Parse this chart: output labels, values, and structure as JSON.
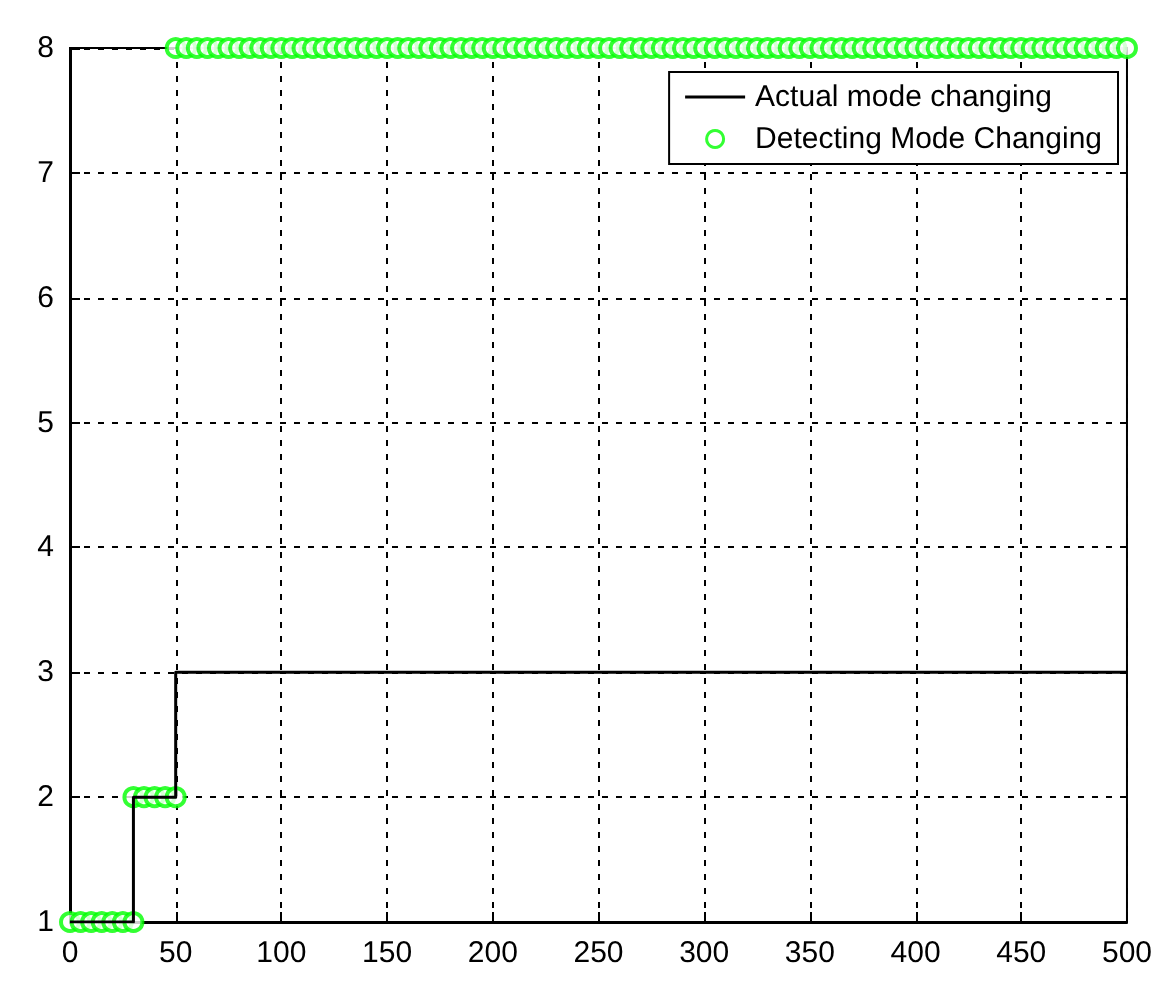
{
  "chart_data": {
    "type": "line",
    "xlim": [
      0,
      500
    ],
    "ylim": [
      1,
      8
    ],
    "xticks": [
      0,
      50,
      100,
      150,
      200,
      250,
      300,
      350,
      400,
      450,
      500
    ],
    "yticks": [
      1,
      2,
      3,
      4,
      5,
      6,
      7,
      8
    ],
    "grid": true,
    "legend": "top right",
    "series": [
      {
        "name": "Actual mode changing",
        "color": "#000000",
        "marker": "none",
        "line_style": "solid",
        "x": [
          0,
          30,
          30,
          50,
          50,
          500
        ],
        "values": [
          1,
          1,
          2,
          2,
          3,
          3
        ]
      },
      {
        "name": "Detecting Mode Changing",
        "type": "scatter",
        "color": "#00ff00",
        "marker": "circle",
        "x": [
          0,
          5,
          10,
          15,
          20,
          25,
          30,
          30,
          35,
          40,
          45,
          50,
          50,
          55,
          60,
          65,
          70,
          75,
          80,
          85,
          90,
          95,
          100,
          105,
          110,
          115,
          120,
          125,
          130,
          135,
          140,
          145,
          150,
          155,
          160,
          165,
          170,
          175,
          180,
          185,
          190,
          195,
          200,
          205,
          210,
          215,
          220,
          225,
          230,
          235,
          240,
          245,
          250,
          255,
          260,
          265,
          270,
          275,
          280,
          285,
          290,
          295,
          300,
          305,
          310,
          315,
          320,
          325,
          330,
          335,
          340,
          345,
          350,
          355,
          360,
          365,
          370,
          375,
          380,
          385,
          390,
          395,
          400,
          405,
          410,
          415,
          420,
          425,
          430,
          435,
          440,
          445,
          450,
          455,
          460,
          465,
          470,
          475,
          480,
          485,
          490,
          495,
          500
        ],
        "values": [
          1,
          1,
          1,
          1,
          1,
          1,
          1,
          2,
          2,
          2,
          2,
          2,
          8,
          8,
          8,
          8,
          8,
          8,
          8,
          8,
          8,
          8,
          8,
          8,
          8,
          8,
          8,
          8,
          8,
          8,
          8,
          8,
          8,
          8,
          8,
          8,
          8,
          8,
          8,
          8,
          8,
          8,
          8,
          8,
          8,
          8,
          8,
          8,
          8,
          8,
          8,
          8,
          8,
          8,
          8,
          8,
          8,
          8,
          8,
          8,
          8,
          8,
          8,
          8,
          8,
          8,
          8,
          8,
          8,
          8,
          8,
          8,
          8,
          8,
          8,
          8,
          8,
          8,
          8,
          8,
          8,
          8,
          8,
          8,
          8,
          8,
          8,
          8,
          8,
          8,
          8,
          8,
          8,
          8,
          8,
          8,
          8,
          8,
          8,
          8,
          8,
          8,
          8
        ]
      }
    ]
  }
}
